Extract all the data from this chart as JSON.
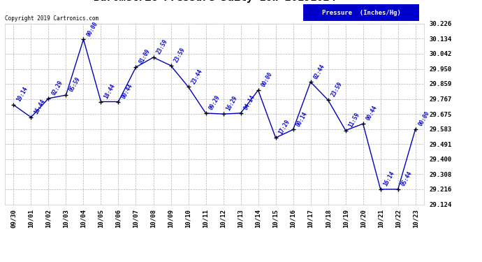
{
  "copyright": "Copyright 2019 Cartronics.com",
  "legend_label": "Pressure  (Inches/Hg)",
  "ylim": [
    29.124,
    30.226
  ],
  "yticks": [
    29.124,
    29.216,
    29.308,
    29.4,
    29.491,
    29.583,
    29.675,
    29.767,
    29.859,
    29.95,
    30.042,
    30.134,
    30.226
  ],
  "line_color": "#0000bb",
  "marker_color": "#000000",
  "legend_bg": "#0000cc",
  "legend_fg": "#ffffff",
  "dates": [
    "09/30",
    "10/01",
    "10/02",
    "10/03",
    "10/04",
    "10/05",
    "10/06",
    "10/07",
    "10/08",
    "10/09",
    "10/10",
    "10/11",
    "10/12",
    "10/13",
    "10/14",
    "10/15",
    "10/16",
    "10/17",
    "10/18",
    "10/19",
    "10/20",
    "10/21",
    "10/22",
    "10/23"
  ],
  "values": [
    29.73,
    29.655,
    29.77,
    29.79,
    30.13,
    29.75,
    29.75,
    29.96,
    30.02,
    29.97,
    29.84,
    29.68,
    29.675,
    29.68,
    29.82,
    29.53,
    29.58,
    29.87,
    29.76,
    29.575,
    29.615,
    29.216,
    29.216,
    29.583
  ],
  "annotations": [
    "19:14",
    "16:44",
    "02:29",
    "05:59",
    "00:00",
    "18:44",
    "00:44",
    "01:09",
    "23:59",
    "23:59",
    "23:44",
    "09:29",
    "16:29",
    "04:14",
    "00:00",
    "17:29",
    "00:14",
    "02:44",
    "23:59",
    "11:59",
    "00:44",
    "16:14",
    "05:44",
    "00:00"
  ],
  "background_color": "#ffffff",
  "grid_color": "#aaaaaa",
  "title_fontsize": 11,
  "annotation_color": "#0000cc",
  "ann_fontsize": 5.5
}
